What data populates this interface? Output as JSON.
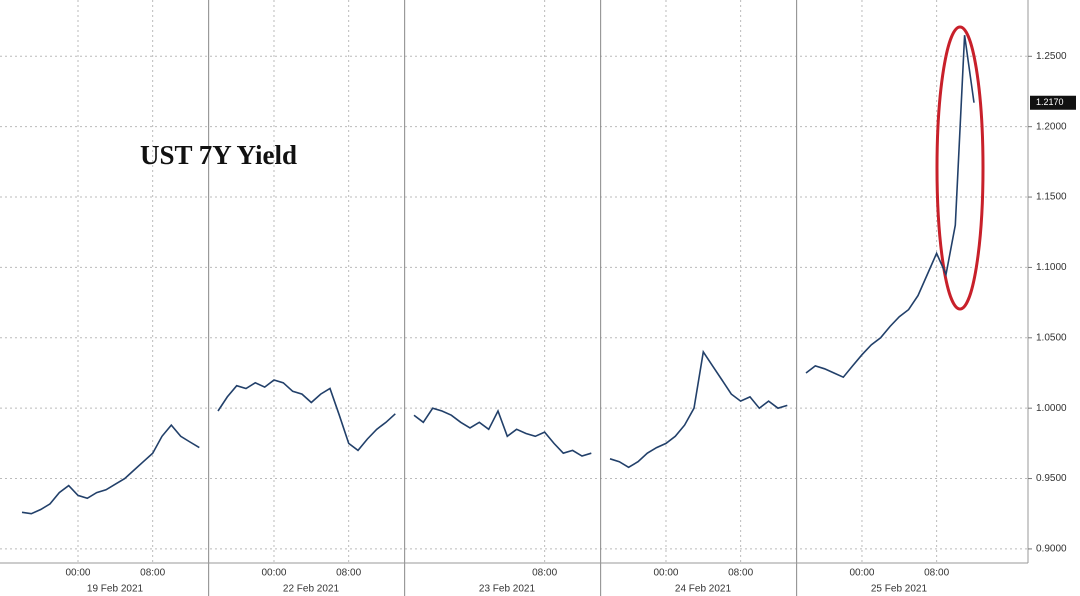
{
  "chart_data": {
    "type": "line",
    "title": "UST 7Y Yield",
    "x": [
      "18 Feb 2021 18:00",
      "18 Feb 2021 19:00",
      "18 Feb 2021 20:00",
      "18 Feb 2021 21:00",
      "18 Feb 2021 22:00",
      "18 Feb 2021 23:00",
      "19 Feb 2021 00:00",
      "19 Feb 2021 01:00",
      "19 Feb 2021 02:00",
      "19 Feb 2021 03:00",
      "19 Feb 2021 04:00",
      "19 Feb 2021 05:00",
      "19 Feb 2021 06:00",
      "19 Feb 2021 07:00",
      "19 Feb 2021 08:00",
      "19 Feb 2021 09:00",
      "19 Feb 2021 10:00",
      "19 Feb 2021 11:00",
      "19 Feb 2021 12:00",
      "19 Feb 2021 13:00",
      "19 Feb 2021 14:00",
      "21 Feb 2021 18:00",
      "21 Feb 2021 19:00",
      "21 Feb 2021 20:00",
      "21 Feb 2021 21:00",
      "21 Feb 2021 22:00",
      "21 Feb 2021 23:00",
      "22 Feb 2021 00:00",
      "22 Feb 2021 01:00",
      "22 Feb 2021 02:00",
      "22 Feb 2021 03:00",
      "22 Feb 2021 04:00",
      "22 Feb 2021 05:00",
      "22 Feb 2021 06:00",
      "22 Feb 2021 07:00",
      "22 Feb 2021 08:00",
      "22 Feb 2021 09:00",
      "22 Feb 2021 10:00",
      "22 Feb 2021 11:00",
      "22 Feb 2021 12:00",
      "22 Feb 2021 13:00",
      "22 Feb 2021 14:00",
      "22 Feb 2021 18:00",
      "22 Feb 2021 19:00",
      "22 Feb 2021 20:00",
      "22 Feb 2021 21:00",
      "22 Feb 2021 22:00",
      "22 Feb 2021 23:00",
      "23 Feb 2021 00:00",
      "23 Feb 2021 01:00",
      "23 Feb 2021 02:00",
      "23 Feb 2021 03:00",
      "23 Feb 2021 04:00",
      "23 Feb 2021 05:00",
      "23 Feb 2021 06:00",
      "23 Feb 2021 07:00",
      "23 Feb 2021 08:00",
      "23 Feb 2021 09:00",
      "23 Feb 2021 10:00",
      "23 Feb 2021 11:00",
      "23 Feb 2021 12:00",
      "23 Feb 2021 13:00",
      "23 Feb 2021 14:00",
      "23 Feb 2021 18:00",
      "23 Feb 2021 19:00",
      "23 Feb 2021 20:00",
      "23 Feb 2021 21:00",
      "23 Feb 2021 22:00",
      "23 Feb 2021 23:00",
      "24 Feb 2021 00:00",
      "24 Feb 2021 01:00",
      "24 Feb 2021 02:00",
      "24 Feb 2021 03:00",
      "24 Feb 2021 04:00",
      "24 Feb 2021 05:00",
      "24 Feb 2021 06:00",
      "24 Feb 2021 07:00",
      "24 Feb 2021 08:00",
      "24 Feb 2021 09:00",
      "24 Feb 2021 10:00",
      "24 Feb 2021 11:00",
      "24 Feb 2021 12:00",
      "24 Feb 2021 13:00",
      "24 Feb 2021 14:00",
      "24 Feb 2021 18:00",
      "24 Feb 2021 19:00",
      "24 Feb 2021 20:00",
      "24 Feb 2021 21:00",
      "24 Feb 2021 22:00",
      "24 Feb 2021 23:00",
      "25 Feb 2021 00:00",
      "25 Feb 2021 01:00",
      "25 Feb 2021 02:00",
      "25 Feb 2021 03:00",
      "25 Feb 2021 04:00",
      "25 Feb 2021 05:00",
      "25 Feb 2021 06:00",
      "25 Feb 2021 07:00",
      "25 Feb 2021 08:00",
      "25 Feb 2021 09:00",
      "25 Feb 2021 10:00",
      "25 Feb 2021 11:00",
      "25 Feb 2021 12:00"
    ],
    "series": [
      {
        "name": "UST 7Y Yield",
        "color": "#22406a",
        "values": [
          0.926,
          0.925,
          0.928,
          0.932,
          0.94,
          0.945,
          0.938,
          0.936,
          0.94,
          0.942,
          0.946,
          0.95,
          0.956,
          0.962,
          0.968,
          0.98,
          0.988,
          0.98,
          0.976,
          0.972,
          null,
          0.998,
          1.008,
          1.016,
          1.014,
          1.018,
          1.015,
          1.02,
          1.018,
          1.012,
          1.01,
          1.004,
          1.01,
          1.014,
          0.995,
          0.975,
          0.97,
          0.978,
          0.985,
          0.99,
          0.996,
          null,
          0.995,
          0.99,
          1.0,
          0.998,
          0.995,
          0.99,
          0.986,
          0.99,
          0.985,
          0.998,
          0.98,
          0.985,
          0.982,
          0.98,
          0.983,
          0.975,
          0.968,
          0.97,
          0.966,
          0.968,
          null,
          0.964,
          0.962,
          0.958,
          0.962,
          0.968,
          0.972,
          0.975,
          0.98,
          0.988,
          1.0,
          1.04,
          1.03,
          1.02,
          1.01,
          1.005,
          1.008,
          1.0,
          1.005,
          1.0,
          1.002,
          null,
          1.025,
          1.03,
          1.028,
          1.025,
          1.022,
          1.03,
          1.038,
          1.045,
          1.05,
          1.058,
          1.065,
          1.07,
          1.08,
          1.095,
          1.11,
          1.095,
          1.13,
          1.265,
          1.217
        ]
      }
    ],
    "last_value_label": "1.2170",
    "ylim": [
      0.89,
      1.29
    ],
    "yticks": [
      {
        "value": 0.9,
        "label": "0.9000"
      },
      {
        "value": 0.95,
        "label": "0.9500"
      },
      {
        "value": 1.0,
        "label": "1.0000"
      },
      {
        "value": 1.05,
        "label": "1.0500"
      },
      {
        "value": 1.1,
        "label": "1.1000"
      },
      {
        "value": 1.15,
        "label": "1.1500"
      },
      {
        "value": 1.2,
        "label": "1.2000"
      },
      {
        "value": 1.25,
        "label": "1.2500"
      }
    ],
    "xticks": [
      {
        "value": "19 Feb 2021 00:00",
        "label": "00:00"
      },
      {
        "value": "19 Feb 2021 08:00",
        "label": "08:00"
      },
      {
        "value": "22 Feb 2021 00:00",
        "label": "00:00"
      },
      {
        "value": "22 Feb 2021 08:00",
        "label": "08:00"
      },
      {
        "value": "23 Feb 2021 08:00",
        "label": "08:00"
      },
      {
        "value": "24 Feb 2021 00:00",
        "label": "00:00"
      },
      {
        "value": "24 Feb 2021 08:00",
        "label": "08:00"
      },
      {
        "value": "25 Feb 2021 00:00",
        "label": "00:00"
      },
      {
        "value": "25 Feb 2021 08:00",
        "label": "08:00"
      }
    ],
    "date_labels": [
      {
        "value": "19 Feb 2021 00:00",
        "label": "19 Feb 2021"
      },
      {
        "value": "22 Feb 2021 00:00",
        "label": "22 Feb 2021"
      },
      {
        "value": "23 Feb 2021 00:00",
        "label": "23 Feb 2021"
      },
      {
        "value": "24 Feb 2021 00:00",
        "label": "24 Feb 2021"
      },
      {
        "value": "25 Feb 2021 00:00",
        "label": "25 Feb 2021"
      }
    ],
    "grid": true
  }
}
